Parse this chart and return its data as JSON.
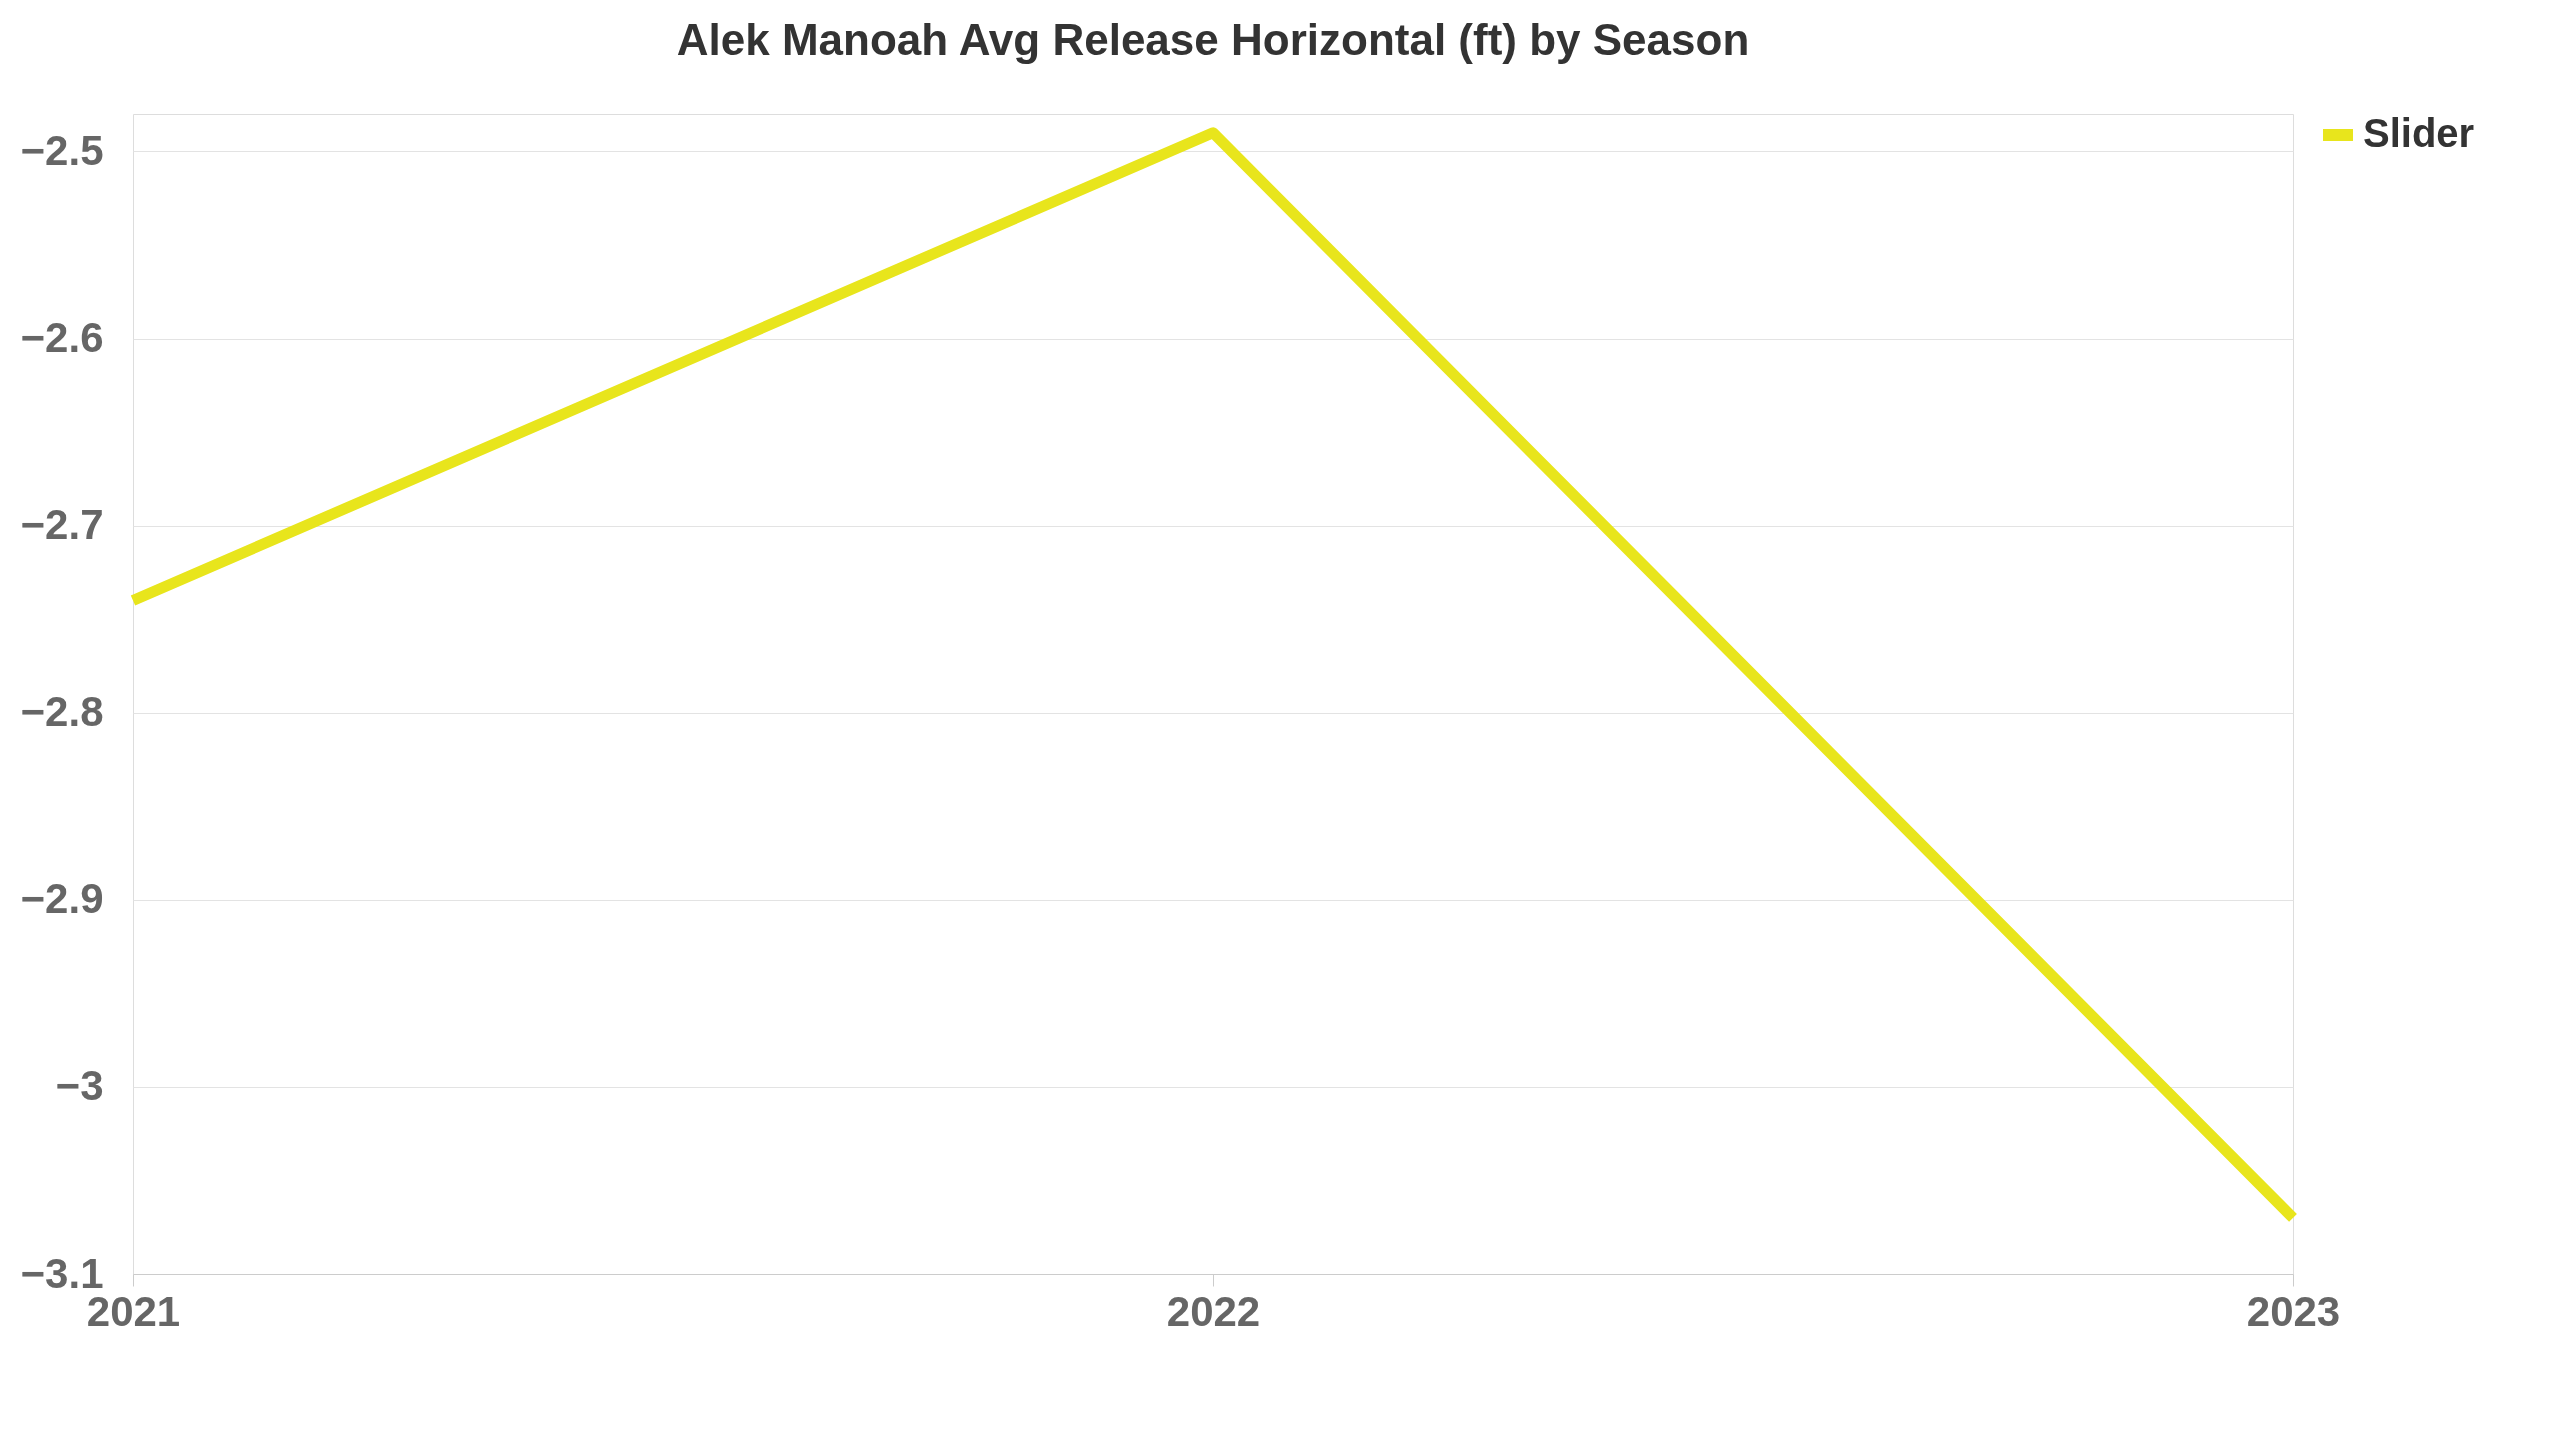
{
  "chart_data": {
    "type": "line",
    "title": "Alek Manoah Avg Release Horizontal (ft) by Season",
    "categories": [
      "2021",
      "2022",
      "2023"
    ],
    "series": [
      {
        "name": "Slider",
        "color": "#e8e51c",
        "values": [
          -2.74,
          -2.49,
          -3.07
        ]
      }
    ],
    "ylim": [
      -3.1,
      -2.48
    ],
    "yticks": [
      -3.1,
      -3,
      -2.9,
      -2.8,
      -2.7,
      -2.6,
      -2.5
    ],
    "grid": "y",
    "legend": "right",
    "marker": "none",
    "line_style": "solid"
  }
}
